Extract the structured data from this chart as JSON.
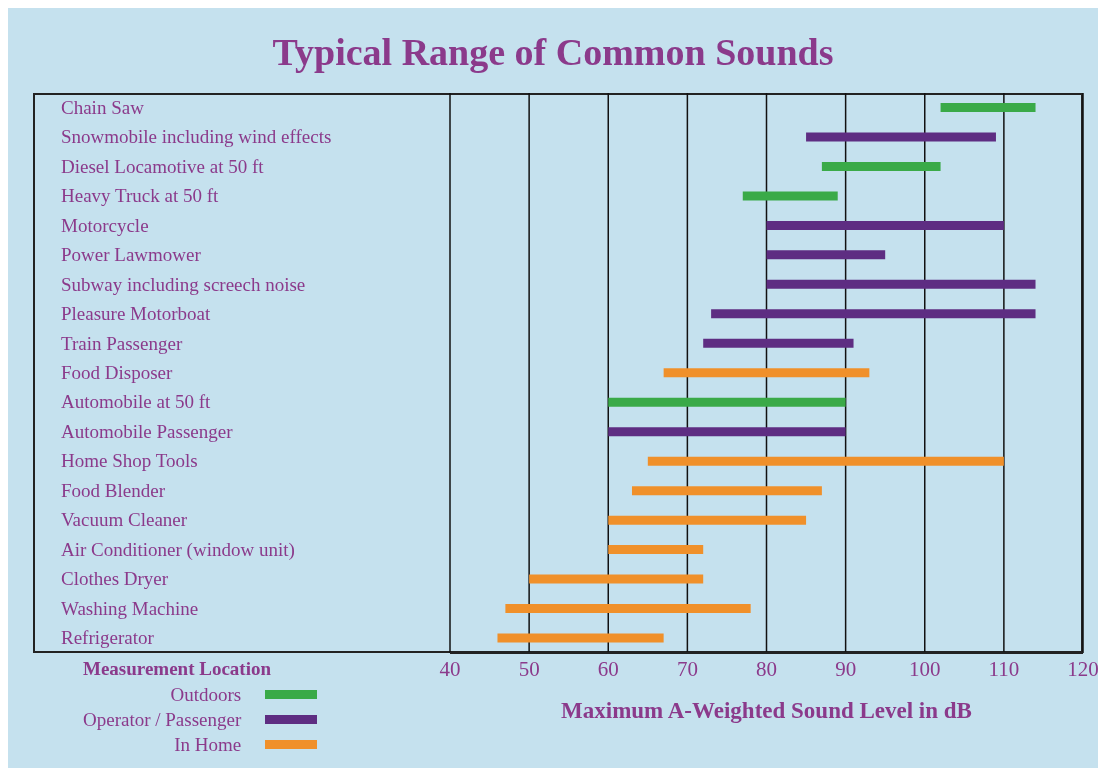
{
  "chart_data": {
    "type": "bar",
    "orientation": "horizontal",
    "title": "Typical Range of Common Sounds",
    "xlabel": "Maximum A-Weighted Sound Level in dB",
    "legend_title": "Measurement Location",
    "legend": "bottom left",
    "grid": "x",
    "categories": [
      "Chain Saw",
      "Snowmobile including wind effects",
      "Diesel Locamotive at 50 ft",
      "Heavy Truck at 50 ft",
      "Motorcycle",
      "Power Lawmower",
      "Subway including screech noise",
      "Pleasure Motorboat",
      "Train Passenger",
      "Food Disposer",
      "Automobile at 50 ft",
      "Automobile Passenger",
      "Home Shop Tools",
      "Food Blender",
      "Vacuum Cleaner",
      "Air Conditioner (window unit)",
      "Clothes Dryer",
      "Washing Machine",
      "Refrigerator"
    ],
    "xlim": [
      40,
      120
    ],
    "xticks": [
      40,
      50,
      60,
      70,
      80,
      90,
      100,
      110,
      120
    ],
    "series": [
      {
        "name": "Outdoors",
        "color": "#3aaa48",
        "base": [
          102,
          null,
          87,
          77,
          null,
          null,
          null,
          null,
          null,
          null,
          60,
          null,
          null,
          null,
          null,
          null,
          null,
          null,
          null
        ],
        "values": [
          12,
          null,
          15,
          12,
          null,
          null,
          null,
          null,
          null,
          null,
          30,
          null,
          null,
          null,
          null,
          null,
          null,
          null,
          null
        ]
      },
      {
        "name": "Operator / Passenger",
        "color": "#5e2d82",
        "base": [
          null,
          85,
          null,
          null,
          80,
          80,
          80,
          73,
          72,
          null,
          null,
          60,
          null,
          null,
          null,
          null,
          null,
          null,
          null
        ],
        "values": [
          null,
          24,
          null,
          null,
          30,
          15,
          34,
          41,
          19,
          null,
          null,
          30,
          null,
          null,
          null,
          null,
          null,
          null,
          null
        ]
      },
      {
        "name": "In Home",
        "color": "#f0902a",
        "base": [
          null,
          null,
          null,
          null,
          null,
          null,
          null,
          null,
          null,
          67,
          null,
          null,
          65,
          63,
          60,
          60,
          50,
          47,
          46
        ],
        "values": [
          null,
          null,
          null,
          null,
          null,
          null,
          null,
          null,
          null,
          26,
          null,
          null,
          45,
          24,
          25,
          12,
          22,
          31,
          21
        ]
      }
    ]
  }
}
